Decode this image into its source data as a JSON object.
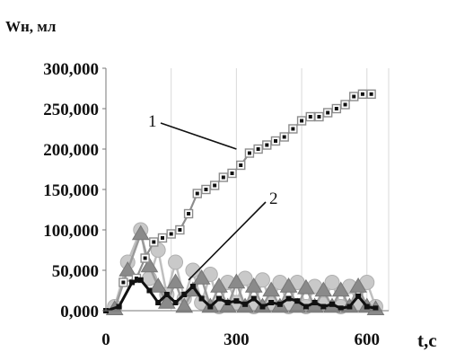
{
  "chart_data": {
    "type": "line",
    "ylabel": "Wн, мл",
    "xlabel": "t,c",
    "xlim": [
      0,
      650
    ],
    "ylim": [
      0,
      300000
    ],
    "x_ticks": [
      {
        "value": 0,
        "label": "0"
      },
      {
        "value": 300,
        "label": "300"
      },
      {
        "value": 600,
        "label": "600"
      }
    ],
    "y_ticks": [
      {
        "value": 0,
        "label": "0,000"
      },
      {
        "value": 50000,
        "label": "50,000"
      },
      {
        "value": 100000,
        "label": "100,000"
      },
      {
        "value": 150000,
        "label": "150,000"
      },
      {
        "value": 200000,
        "label": "200,000"
      },
      {
        "value": 250000,
        "label": "250,000"
      },
      {
        "value": 300000,
        "label": "300,000"
      }
    ],
    "grid": "vertical",
    "annotations": [
      {
        "label": "1",
        "series": 0,
        "target": [
          300,
          200000
        ]
      },
      {
        "label": "2",
        "series": 1,
        "target": [
          190,
          38000
        ]
      }
    ],
    "series": [
      {
        "name": "",
        "color": "#8c8c8c",
        "marker": "square",
        "x": [
          40,
          70,
          90,
          110,
          130,
          150,
          170,
          190,
          210,
          230,
          250,
          270,
          290,
          310,
          330,
          350,
          370,
          390,
          410,
          430,
          450,
          470,
          490,
          510,
          530,
          550,
          570,
          590,
          610
        ],
        "y": [
          35000,
          40000,
          65000,
          85000,
          90000,
          95000,
          100000,
          120000,
          145000,
          150000,
          155000,
          165000,
          170000,
          180000,
          195000,
          200000,
          205000,
          210000,
          215000,
          225000,
          235000,
          240000,
          240000,
          245000,
          250000,
          255000,
          265000,
          268000,
          268000
        ]
      },
      {
        "name": "",
        "color": "#111111",
        "marker": "square",
        "x": [
          0,
          30,
          60,
          80,
          100,
          120,
          140,
          160,
          180,
          200,
          220,
          240,
          260,
          280,
          300,
          320,
          340,
          360,
          380,
          400,
          420,
          440,
          460,
          480,
          500,
          520,
          540,
          560,
          580,
          600,
          620
        ],
        "y": [
          0,
          5000,
          35000,
          38000,
          25000,
          10000,
          20000,
          10000,
          20000,
          30000,
          15000,
          5000,
          15000,
          10000,
          12000,
          8000,
          15000,
          5000,
          10000,
          8000,
          15000,
          12000,
          5000,
          10000,
          5000,
          8000,
          3000,
          5000,
          18000,
          5000,
          3000
        ]
      },
      {
        "name": "",
        "color": "#bfbfbf",
        "marker": "circle",
        "x": [
          20,
          50,
          80,
          100,
          120,
          140,
          160,
          180,
          200,
          220,
          240,
          260,
          280,
          300,
          320,
          340,
          360,
          380,
          400,
          420,
          440,
          460,
          480,
          500,
          520,
          540,
          560,
          580,
          600,
          620
        ],
        "y": [
          5000,
          60000,
          100000,
          40000,
          75000,
          20000,
          60000,
          15000,
          50000,
          10000,
          45000,
          5000,
          35000,
          10000,
          40000,
          5000,
          38000,
          8000,
          35000,
          5000,
          35000,
          5000,
          30000,
          8000,
          35000,
          5000,
          30000,
          8000,
          35000,
          5000
        ]
      },
      {
        "name": "",
        "color": "#9a9a9a",
        "marker": "triangle",
        "x": [
          20,
          50,
          80,
          100,
          120,
          140,
          160,
          180,
          200,
          220,
          240,
          260,
          280,
          300,
          320,
          340,
          360,
          380,
          400,
          420,
          440,
          460,
          480,
          500,
          520,
          540,
          560,
          580,
          600,
          620
        ],
        "y": [
          2000,
          50000,
          95000,
          55000,
          30000,
          10000,
          35000,
          5000,
          25000,
          40000,
          5000,
          30000,
          5000,
          35000,
          5000,
          30000,
          5000,
          25000,
          5000,
          30000,
          5000,
          28000,
          5000,
          25000,
          5000,
          25000,
          5000,
          30000,
          5000,
          2000
        ]
      }
    ]
  }
}
